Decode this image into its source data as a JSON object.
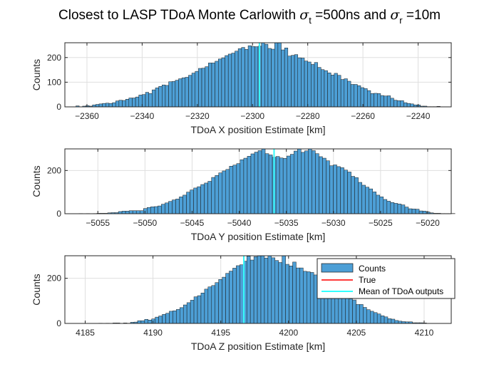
{
  "figure": {
    "title_prefix": "Closest to LASP TDoA Monte Carlowith ",
    "sigma": "σ",
    "sub_t": "t",
    "t_value": " =500ns and ",
    "sub_r": "r",
    "r_value": " =10m"
  },
  "legend": {
    "counts": "Counts",
    "true": "True",
    "mean": "Mean of TDoA outputs"
  },
  "colors": {
    "bar_fill": "#4d9fd6",
    "bar_edge": "#1a1a1a",
    "true_line": "#ff3b3b",
    "mean_line": "#33ffff",
    "grid": "#dfdfdf"
  },
  "chart_data": [
    {
      "type": "bar",
      "subplot": "x",
      "xlabel": "TDoA X position Estimate [km]",
      "ylabel": "Counts",
      "xlim": [
        -2368,
        -2228
      ],
      "ylim": [
        0,
        260
      ],
      "xticks": [
        -2360,
        -2340,
        -2320,
        -2300,
        -2280,
        -2260,
        -2240
      ],
      "yticks": [
        0,
        100,
        200
      ],
      "grid": true,
      "bin_start": -2364,
      "bin_width": 1.2,
      "values": [
        4,
        0,
        3,
        5,
        3,
        8,
        10,
        12,
        14,
        15,
        14,
        17,
        24,
        27,
        26,
        31,
        36,
        36,
        40,
        48,
        50,
        59,
        54,
        69,
        77,
        83,
        89,
        87,
        102,
        103,
        108,
        114,
        118,
        120,
        128,
        137,
        144,
        156,
        157,
        163,
        178,
        178,
        185,
        194,
        199,
        208,
        214,
        218,
        226,
        236,
        241,
        233,
        248,
        245,
        244,
        246,
        270,
        254,
        237,
        234,
        264,
        270,
        231,
        239,
        206,
        209,
        212,
        199,
        198,
        186,
        182,
        172,
        180,
        160,
        151,
        147,
        138,
        129,
        136,
        128,
        111,
        114,
        104,
        91,
        91,
        86,
        78,
        74,
        66,
        54,
        55,
        54,
        46,
        44,
        45,
        35,
        27,
        25,
        25,
        17,
        14,
        12,
        8,
        8,
        3,
        3,
        1,
        1,
        1,
        2
      ],
      "mean": -2297.5,
      "true": -2297.5
    },
    {
      "type": "bar",
      "subplot": "y",
      "xlabel": "TDoA Y position Estimate [km]",
      "ylabel": "Counts",
      "xlim": [
        -5058.5,
        -5017.5
      ],
      "ylim": [
        0,
        300
      ],
      "xticks": [
        -5055,
        -5050,
        -5045,
        -5040,
        -5035,
        -5030,
        -5025,
        -5020
      ],
      "yticks": [
        0,
        200
      ],
      "grid": true,
      "bin_start": -5057,
      "bin_width": 0.38,
      "values": [
        1,
        0,
        1,
        0,
        1,
        2,
        2,
        2,
        4,
        5,
        5,
        10,
        12,
        12,
        14,
        14,
        14,
        14,
        24,
        29,
        32,
        33,
        36,
        44,
        50,
        57,
        64,
        68,
        78,
        86,
        100,
        110,
        119,
        125,
        135,
        142,
        150,
        168,
        177,
        189,
        198,
        205,
        220,
        225,
        232,
        250,
        257,
        266,
        277,
        285,
        292,
        300,
        278,
        272,
        261,
        265,
        258,
        256,
        267,
        275,
        290,
        300,
        284,
        291,
        300,
        292,
        278,
        264,
        257,
        245,
        222,
        226,
        218,
        213,
        202,
        193,
        173,
        167,
        145,
        132,
        123,
        115,
        101,
        86,
        78,
        66,
        58,
        52,
        48,
        45,
        41,
        31,
        23,
        22,
        21,
        13,
        12,
        8,
        4,
        2,
        2,
        1,
        1,
        1,
        1
      ],
      "mean": -5036.3,
      "true": -5036.3
    },
    {
      "type": "bar",
      "subplot": "z",
      "xlabel": "TDoA Z position Estimate [km]",
      "ylabel": "Counts",
      "xlim": [
        4183.5,
        4212
      ],
      "ylim": [
        0,
        300
      ],
      "xticks": [
        4185,
        4190,
        4195,
        4200,
        4205,
        4210
      ],
      "yticks": [
        0,
        200
      ],
      "grid": true,
      "bin_start": 4186,
      "bin_width": 0.26,
      "values": [
        1,
        0,
        1,
        0,
        2,
        2,
        0,
        2,
        1,
        5,
        6,
        12,
        12,
        18,
        15,
        20,
        28,
        33,
        40,
        45,
        54,
        56,
        62,
        70,
        82,
        92,
        103,
        118,
        123,
        135,
        152,
        162,
        168,
        181,
        195,
        205,
        222,
        232,
        245,
        256,
        260,
        276,
        298,
        281,
        296,
        300,
        300,
        290,
        300,
        291,
        279,
        270,
        300,
        262,
        255,
        272,
        246,
        246,
        231,
        229,
        226,
        215,
        199,
        198,
        187,
        177,
        164,
        153,
        138,
        130,
        114,
        109,
        104,
        84,
        84,
        71,
        61,
        54,
        48,
        42,
        34,
        29,
        21,
        19,
        13,
        10,
        8,
        7,
        7,
        3,
        3,
        3,
        2
      ],
      "mean": 4196.7,
      "true": 4196.7
    }
  ]
}
